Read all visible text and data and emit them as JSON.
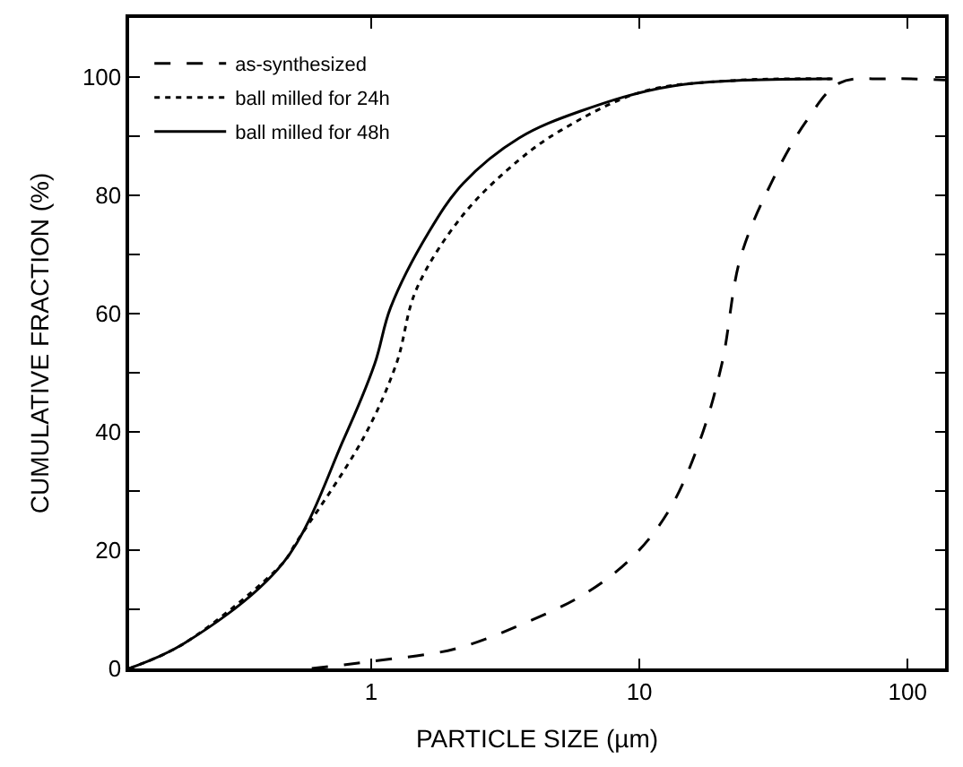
{
  "chart_data": {
    "type": "line",
    "xlabel": "PARTICLE SIZE (µm)",
    "ylabel": "CUMULATIVE FRACTION (%)",
    "log": "x",
    "xlim": [
      0.125,
      138
    ],
    "ylim": [
      0,
      110
    ],
    "xticks": [
      1,
      10,
      100
    ],
    "yticks": [
      0,
      {
        "value": 10,
        "label": null
      },
      20,
      {
        "value": 30,
        "label": null
      },
      40,
      {
        "value": 50,
        "label": null
      },
      60,
      {
        "value": 70,
        "label": null
      },
      80,
      {
        "value": 90,
        "label": null
      },
      100
    ],
    "legend": "top left",
    "marker": "none",
    "series": [
      {
        "name": "as-synthesized",
        "color": "#000000",
        "line_style": "dashed",
        "x": [
          0.6,
          1,
          2.05,
          3.7,
          6.3,
          9.5,
          13,
          16.9,
          20.3,
          23.8,
          30.8,
          41.7,
          55.8,
          83,
          138
        ],
        "values": [
          0,
          1.2,
          3.3,
          7.6,
          12.7,
          19,
          27,
          38.8,
          51.5,
          69.4,
          81.8,
          92.4,
          99,
          99.7,
          99.5
        ]
      },
      {
        "name": "ball milled for 24h",
        "color": "#000000",
        "line_style": "dotted",
        "x": [
          0.125,
          0.2,
          0.47,
          0.52,
          0.93,
          1.24,
          1.47,
          2.2,
          3.56,
          5.1,
          10.2,
          22,
          55
        ],
        "values": [
          0,
          4.2,
          17.9,
          21,
          38.8,
          51.5,
          64,
          76.7,
          86,
          91,
          97.5,
          99.4,
          99.7
        ]
      },
      {
        "name": "ball milled for 48h",
        "color": "#000000",
        "line_style": "solid",
        "x": [
          0.125,
          0.2,
          0.47,
          0.79,
          1.03,
          1.18,
          1.63,
          2.2,
          3.56,
          6.0,
          13.3,
          51.7
        ],
        "values": [
          0,
          4.2,
          17.9,
          38.8,
          51.5,
          61,
          73.6,
          82,
          89.7,
          94.2,
          98.5,
          99.7
        ]
      }
    ]
  }
}
